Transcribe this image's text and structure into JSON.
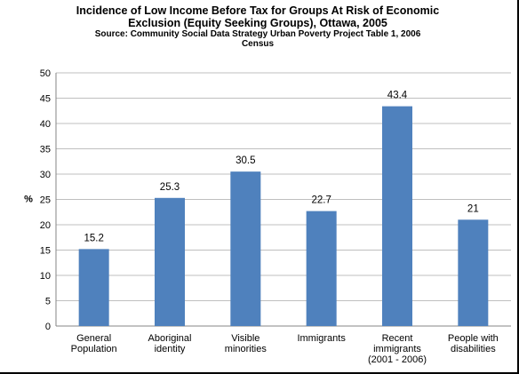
{
  "chart_data": {
    "type": "bar",
    "title_lines": [
      "Incidence of Low Income Before Tax for Groups At Risk of Economic",
      "Exclusion (Equity Seeking Groups), Ottawa, 2005"
    ],
    "subtitle_lines": [
      "Source:  Community Social Data Strategy  Urban Poverty Project Table 1, 2006",
      "Census"
    ],
    "ylabel": "%",
    "xlabel": "",
    "ylim": [
      0,
      50
    ],
    "yticks": [
      0,
      5,
      10,
      15,
      20,
      25,
      30,
      35,
      40,
      45,
      50
    ],
    "grid": true,
    "categories": [
      [
        "General",
        "Population"
      ],
      [
        "Aboriginal",
        "identity"
      ],
      [
        "Visible",
        "minorities"
      ],
      [
        "Immigrants"
      ],
      [
        "Recent",
        "immigrants",
        "(2001 - 2006)"
      ],
      [
        "People with",
        "disabilities"
      ]
    ],
    "values": [
      15.2,
      25.3,
      30.5,
      22.7,
      43.4,
      21
    ],
    "data_labels": [
      "15.2",
      "25.3",
      "30.5",
      "22.7",
      "43.4",
      "21"
    ],
    "bar_color": "#4f81bd",
    "grid_color": "#bfbfbf"
  }
}
